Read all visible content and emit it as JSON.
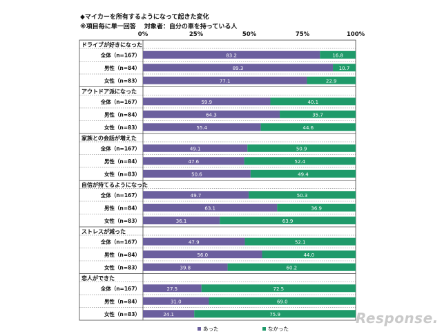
{
  "title": "◆マイカーを所有するようになって起きた変化",
  "subtitle": "※項目毎に単一回答　 対象者：自分の車を持っている人",
  "watermark": "Response.",
  "chart_data": {
    "type": "bar",
    "orientation": "horizontal",
    "stacked": true,
    "xlim": [
      0,
      100
    ],
    "x_ticks": [
      "0%",
      "25%",
      "50%",
      "75%",
      "100%"
    ],
    "legend_position": "bottom",
    "series": [
      {
        "name": "あった",
        "color": "#6b5f9e"
      },
      {
        "name": "なかった",
        "color": "#1f9a6a"
      }
    ],
    "groups": [
      {
        "label": "ドライブが好きになった",
        "rows": [
          {
            "label": "全体（n=167）",
            "values": [
              83.2,
              16.8
            ]
          },
          {
            "label": "男性（n=84）",
            "values": [
              89.3,
              10.7
            ]
          },
          {
            "label": "女性（n=83）",
            "values": [
              77.1,
              22.9
            ]
          }
        ]
      },
      {
        "label": "アウトドア派になった",
        "rows": [
          {
            "label": "全体（n=167）",
            "values": [
              59.9,
              40.1
            ]
          },
          {
            "label": "男性（n=84）",
            "values": [
              64.3,
              35.7
            ]
          },
          {
            "label": "女性（n=83）",
            "values": [
              55.4,
              44.6
            ]
          }
        ]
      },
      {
        "label": "家族との会話が増えた",
        "rows": [
          {
            "label": "全体（n=167）",
            "values": [
              49.1,
              50.9
            ]
          },
          {
            "label": "男性（n=84）",
            "values": [
              47.6,
              52.4
            ]
          },
          {
            "label": "女性（n=83）",
            "values": [
              50.6,
              49.4
            ]
          }
        ]
      },
      {
        "label": "自信が持てるようになった",
        "rows": [
          {
            "label": "全体（n=167）",
            "values": [
              49.7,
              50.3
            ]
          },
          {
            "label": "男性（n=84）",
            "values": [
              63.1,
              36.9
            ]
          },
          {
            "label": "女性（n=83）",
            "values": [
              36.1,
              63.9
            ]
          }
        ]
      },
      {
        "label": "ストレスが減った",
        "rows": [
          {
            "label": "全体（n=167）",
            "values": [
              47.9,
              52.1
            ]
          },
          {
            "label": "男性（n=84）",
            "values": [
              56.0,
              44.0
            ]
          },
          {
            "label": "女性（n=83）",
            "values": [
              39.8,
              60.2
            ]
          }
        ]
      },
      {
        "label": "恋人ができた",
        "rows": [
          {
            "label": "全体（n=167）",
            "values": [
              27.5,
              72.5
            ]
          },
          {
            "label": "男性（n=84）",
            "values": [
              31.0,
              69.0
            ]
          },
          {
            "label": "女性（n=83）",
            "values": [
              24.1,
              75.9
            ]
          }
        ]
      }
    ]
  }
}
